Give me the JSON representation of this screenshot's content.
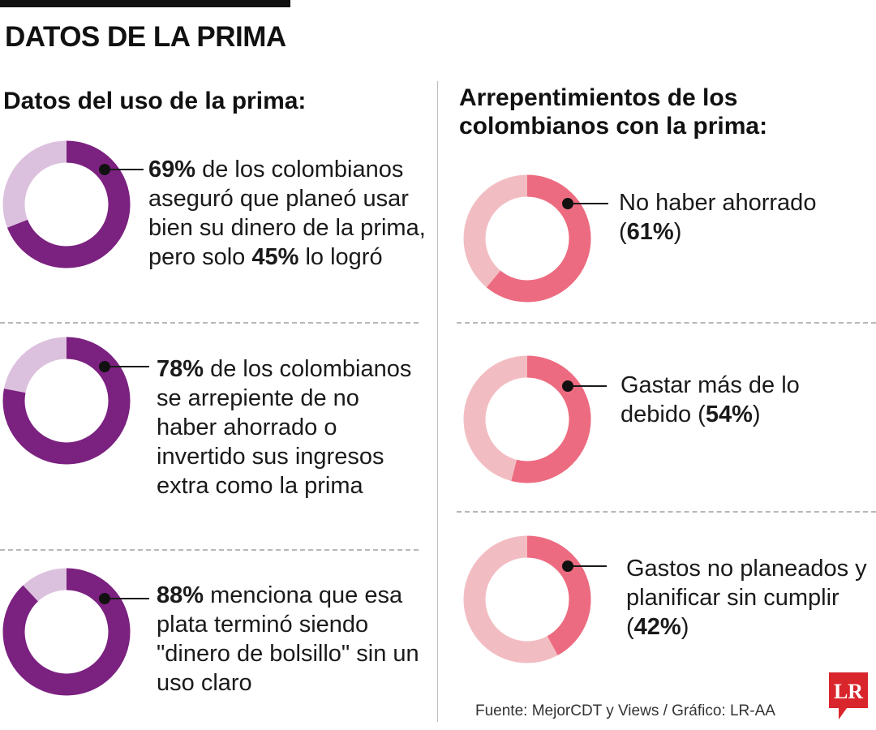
{
  "title": "DATOS DE LA PRIMA",
  "left_section": {
    "title": "Datos del uso de la prima:",
    "items": [
      {
        "pct_label": "69%",
        "text_a": " de los colombianos aseguró que planeó usar bien su dinero de la prima, pero solo ",
        "pct2_label": "45%",
        "text_b": " lo logró"
      },
      {
        "pct_label": "78%",
        "text_a": " de los colombianos se arrepiente de no haber ahorrado o invertido sus ingresos extra como la prima"
      },
      {
        "pct_label": "88%",
        "text_a": " menciona que esa plata terminó siendo \"dinero de bolsillo\" sin un uso claro"
      }
    ]
  },
  "right_section": {
    "title": "Arrepentimientos de los colombianos con la prima:",
    "items": [
      {
        "text_a": "No haber ahorrado (",
        "pct_label": "61%",
        "text_b": ")"
      },
      {
        "text_a": "Gastar más de lo debido (",
        "pct_label": "54%",
        "text_b": ")"
      },
      {
        "text_a": "Gastos no planeados y planificar sin cumplir (",
        "pct_label": "42%",
        "text_b": ")"
      }
    ]
  },
  "source": "Fuente: MejorCDT y Views / Gráfico: LR-AA",
  "logo_text": "LR",
  "colors": {
    "purple_main": "#7b2180",
    "purple_light": "#dcc1de",
    "pink_main": "#ed6b80",
    "pink_light": "#f2bdc2",
    "logo_red": "#d8262c"
  },
  "chart_data": [
    {
      "type": "pie",
      "style": "donut",
      "values": [
        69,
        31
      ]
    },
    {
      "type": "pie",
      "style": "donut",
      "values": [
        78,
        22
      ]
    },
    {
      "type": "pie",
      "style": "donut",
      "values": [
        88,
        12
      ]
    },
    {
      "type": "pie",
      "style": "donut",
      "values": [
        61,
        39
      ]
    },
    {
      "type": "pie",
      "style": "donut",
      "values": [
        54,
        46
      ]
    },
    {
      "type": "pie",
      "style": "donut",
      "values": [
        42,
        58
      ]
    }
  ]
}
